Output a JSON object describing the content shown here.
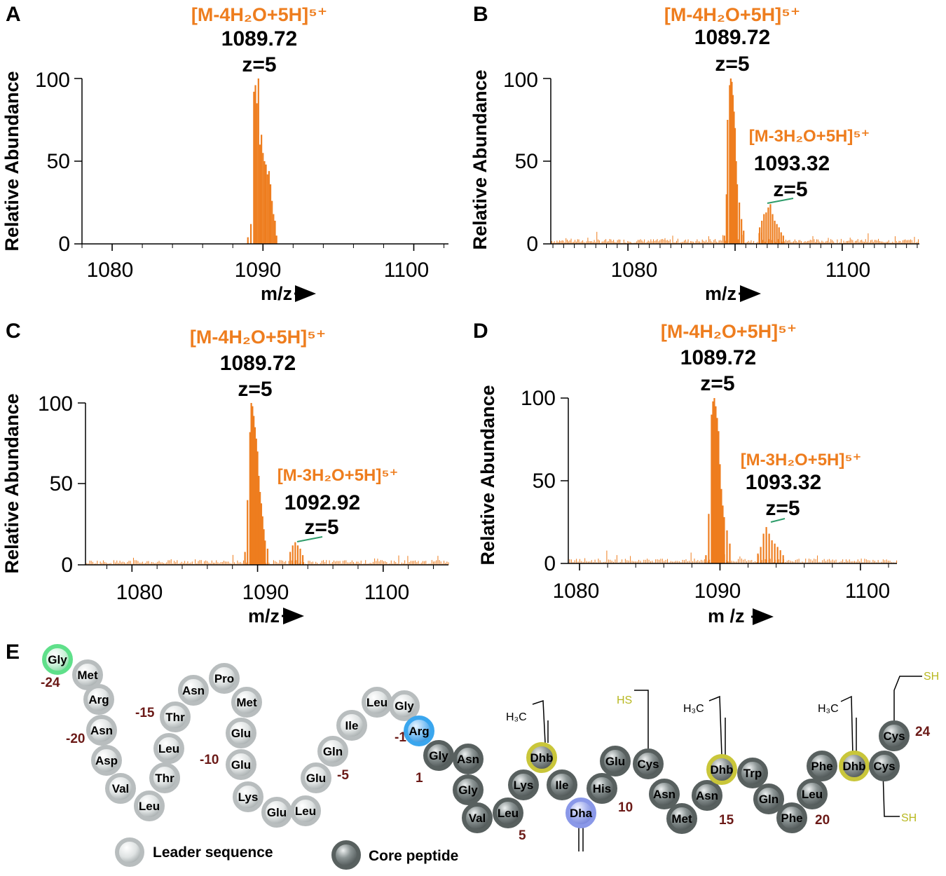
{
  "chart_data": [
    {
      "panel": "A",
      "type": "bar",
      "ylabel": "Relative Abundance",
      "xlabel": "m/z",
      "xlim": [
        1078,
        1102.3
      ],
      "ylim": [
        0,
        100
      ],
      "xticks": [
        "1080",
        "1090",
        "1100"
      ],
      "yticks": [
        "0",
        "50",
        "100"
      ],
      "annotations": [
        {
          "ion": "[M-4H₂O+5H]⁵⁺",
          "mz": "1089.72",
          "z": "z=5"
        }
      ],
      "peaks": [
        [
          1089.0,
          4
        ],
        [
          1089.2,
          12
        ],
        [
          1089.4,
          92
        ],
        [
          1089.5,
          96
        ],
        [
          1089.6,
          85
        ],
        [
          1089.7,
          100
        ],
        [
          1089.8,
          60
        ],
        [
          1089.9,
          66
        ],
        [
          1090.0,
          55
        ],
        [
          1090.1,
          50
        ],
        [
          1090.2,
          48
        ],
        [
          1090.3,
          42
        ],
        [
          1090.4,
          44
        ],
        [
          1090.5,
          36
        ],
        [
          1090.6,
          26
        ],
        [
          1090.7,
          18
        ],
        [
          1090.8,
          14
        ],
        [
          1090.9,
          5
        ]
      ],
      "noise": false
    },
    {
      "panel": "B",
      "type": "bar",
      "ylabel": "Relative Abundance",
      "xlabel": "m/z",
      "xlim": [
        1072.8,
        1107.2
      ],
      "ylim": [
        0,
        100
      ],
      "xticks": [
        "1080",
        "1100"
      ],
      "yticks": [
        "0",
        "50",
        "100"
      ],
      "annotations": [
        {
          "ion": "[M-4H₂O+5H]⁵⁺",
          "mz": "1089.72",
          "z": "z=5"
        },
        {
          "ion": "[M-3H₂O+5H]⁵⁺",
          "mz": "1093.32",
          "z": "z=5"
        }
      ],
      "peaks": [
        [
          1089.0,
          5
        ],
        [
          1089.2,
          30
        ],
        [
          1089.3,
          75
        ],
        [
          1089.5,
          96
        ],
        [
          1089.6,
          100
        ],
        [
          1089.7,
          98
        ],
        [
          1089.8,
          90
        ],
        [
          1089.9,
          80
        ],
        [
          1090.0,
          70
        ],
        [
          1090.1,
          50
        ],
        [
          1090.2,
          36
        ],
        [
          1090.4,
          25
        ],
        [
          1090.6,
          15
        ],
        [
          1090.8,
          8
        ],
        [
          1092.3,
          10
        ],
        [
          1092.5,
          14
        ],
        [
          1092.7,
          18
        ],
        [
          1092.9,
          19
        ],
        [
          1093.1,
          22
        ],
        [
          1093.3,
          24
        ],
        [
          1093.5,
          18
        ],
        [
          1093.7,
          14
        ],
        [
          1093.9,
          12
        ],
        [
          1094.1,
          10
        ],
        [
          1094.3,
          7
        ],
        [
          1094.5,
          5
        ]
      ],
      "noise": true
    },
    {
      "panel": "C",
      "type": "bar",
      "ylabel": "Relative Abundance",
      "xlabel": "m/z",
      "xlim": [
        1076.3,
        1105.2
      ],
      "ylim": [
        0,
        100
      ],
      "xticks": [
        "1080",
        "1090",
        "1100"
      ],
      "yticks": [
        "0",
        "50",
        "100"
      ],
      "annotations": [
        {
          "ion": "[M-4H₂O+5H]⁵⁺",
          "mz": "1089.72",
          "z": "z=5"
        },
        {
          "ion": "[M-3H₂O+5H]⁵⁺",
          "mz": "1092.92",
          "z": "z=5"
        }
      ],
      "peaks": [
        [
          1089.0,
          8
        ],
        [
          1089.2,
          40
        ],
        [
          1089.4,
          82
        ],
        [
          1089.5,
          100
        ],
        [
          1089.6,
          98
        ],
        [
          1089.7,
          92
        ],
        [
          1089.8,
          85
        ],
        [
          1089.9,
          78
        ],
        [
          1090.0,
          70
        ],
        [
          1090.1,
          55
        ],
        [
          1090.2,
          45
        ],
        [
          1090.3,
          38
        ],
        [
          1090.4,
          30
        ],
        [
          1090.5,
          22
        ],
        [
          1090.6,
          15
        ],
        [
          1090.8,
          10
        ],
        [
          1092.6,
          8
        ],
        [
          1092.8,
          12
        ],
        [
          1093.0,
          14
        ],
        [
          1093.2,
          12
        ],
        [
          1093.4,
          10
        ],
        [
          1093.6,
          6
        ]
      ],
      "noise": true
    },
    {
      "panel": "D",
      "type": "bar",
      "ylabel": "Relative Abundance",
      "xlabel": "m /z",
      "xlim": [
        1079.2,
        1102.6
      ],
      "ylim": [
        0,
        100
      ],
      "xticks": [
        "1080",
        "1090",
        "1100"
      ],
      "yticks": [
        "0",
        "50",
        "100"
      ],
      "annotations": [
        {
          "ion": "[M-4H₂O+5H]⁵⁺",
          "mz": "1089.72",
          "z": "z=5"
        },
        {
          "ion": "[M-3H₂O+5H]⁵⁺",
          "mz": "1093.32",
          "z": "z=5"
        }
      ],
      "peaks": [
        [
          1089.0,
          5
        ],
        [
          1089.2,
          30
        ],
        [
          1089.4,
          90
        ],
        [
          1089.5,
          98
        ],
        [
          1089.6,
          100
        ],
        [
          1089.7,
          95
        ],
        [
          1089.8,
          88
        ],
        [
          1089.9,
          80
        ],
        [
          1090.0,
          60
        ],
        [
          1090.1,
          45
        ],
        [
          1090.2,
          35
        ],
        [
          1090.3,
          28
        ],
        [
          1090.5,
          20
        ],
        [
          1090.7,
          12
        ],
        [
          1092.7,
          6
        ],
        [
          1092.9,
          10
        ],
        [
          1093.1,
          18
        ],
        [
          1093.3,
          22
        ],
        [
          1093.5,
          18
        ],
        [
          1093.7,
          14
        ],
        [
          1093.9,
          12
        ],
        [
          1094.1,
          10
        ],
        [
          1094.3,
          8
        ],
        [
          1094.5,
          5
        ]
      ],
      "noise": true
    }
  ],
  "panel_e": {
    "label": "E",
    "legend": {
      "leader": "Leader sequence",
      "core": "Core peptide"
    },
    "leader_residues": [
      "Gly",
      "Met",
      "Arg",
      "Asn",
      "Asp",
      "Val",
      "Leu",
      "Thr",
      "Leu",
      "Thr",
      "Asn",
      "Pro",
      "Met",
      "Glu",
      "Glu",
      "Lys",
      "Glu",
      "Leu",
      "Glu",
      "Gln",
      "Ile",
      "Leu",
      "Gly",
      "Arg"
    ],
    "core_residues": [
      "Gly",
      "Asn",
      "Gly",
      "Val",
      "Leu",
      "Lys",
      "Dhb",
      "Ile",
      "Dha",
      "His",
      "Glu",
      "Cys",
      "Asn",
      "Met",
      "Asn",
      "Dhb",
      "Trp",
      "Gln",
      "Phe",
      "Leu",
      "Phe",
      "Dhb",
      "Cys",
      "Cys"
    ],
    "numbers": {
      "n_m24": "-24",
      "n_m20": "-20",
      "n_m15": "-15",
      "n_m10": "-10",
      "n_m5": "-5",
      "n_m1": "-1",
      "n_1": "1",
      "n_5": "5",
      "n_10": "10",
      "n_15": "15",
      "n_20": "20",
      "n_24": "24"
    },
    "sidechains": {
      "methyl": "H₃C",
      "thiol_left": "HS",
      "thiol_right": "SH"
    },
    "colors": {
      "leader": "#b8bdbe",
      "core": "#58605f",
      "gly_start": "#5fe08a",
      "arg_end": "#3aa6ee",
      "dhb": "#c9c63a",
      "dha": "#8a98e8",
      "thiol": "#b8b820",
      "peak": "#ee7d1e",
      "number": "#6b1a17"
    }
  }
}
